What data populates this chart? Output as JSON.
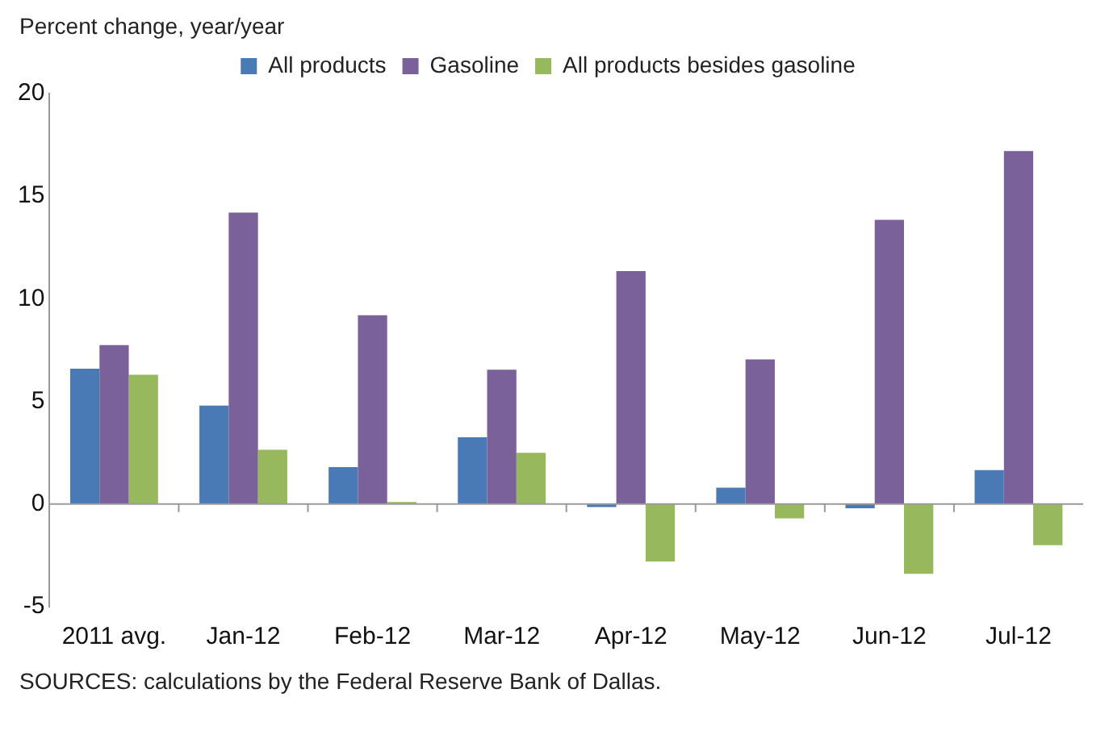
{
  "chart_data": {
    "type": "bar",
    "ylabel": "Percent change, year/year",
    "categories": [
      "2011 avg.",
      "Jan-12",
      "Feb-12",
      "Mar-12",
      "Apr-12",
      "May-12",
      "Jun-12",
      "Jul-12"
    ],
    "series": [
      {
        "name": "All products",
        "color": "#4a7ab5",
        "values": [
          6.6,
          4.8,
          1.8,
          3.25,
          -0.15,
          0.8,
          -0.2,
          1.65
        ]
      },
      {
        "name": "Gasoline",
        "color": "#7a619a",
        "values": [
          7.75,
          14.2,
          9.2,
          6.55,
          11.35,
          7.05,
          13.85,
          17.2
        ]
      },
      {
        "name": "All products besides gasoline",
        "color": "#97b85c",
        "values": [
          6.3,
          2.65,
          0.1,
          2.5,
          -2.8,
          -0.7,
          -3.4,
          -2.0
        ]
      }
    ],
    "ylim": [
      -5,
      20
    ],
    "yticks": [
      -5,
      0,
      5,
      10,
      15,
      20
    ],
    "legend": "top",
    "annotations": [
      "SOURCES: calculations by the Federal Reserve Bank of Dallas."
    ]
  }
}
